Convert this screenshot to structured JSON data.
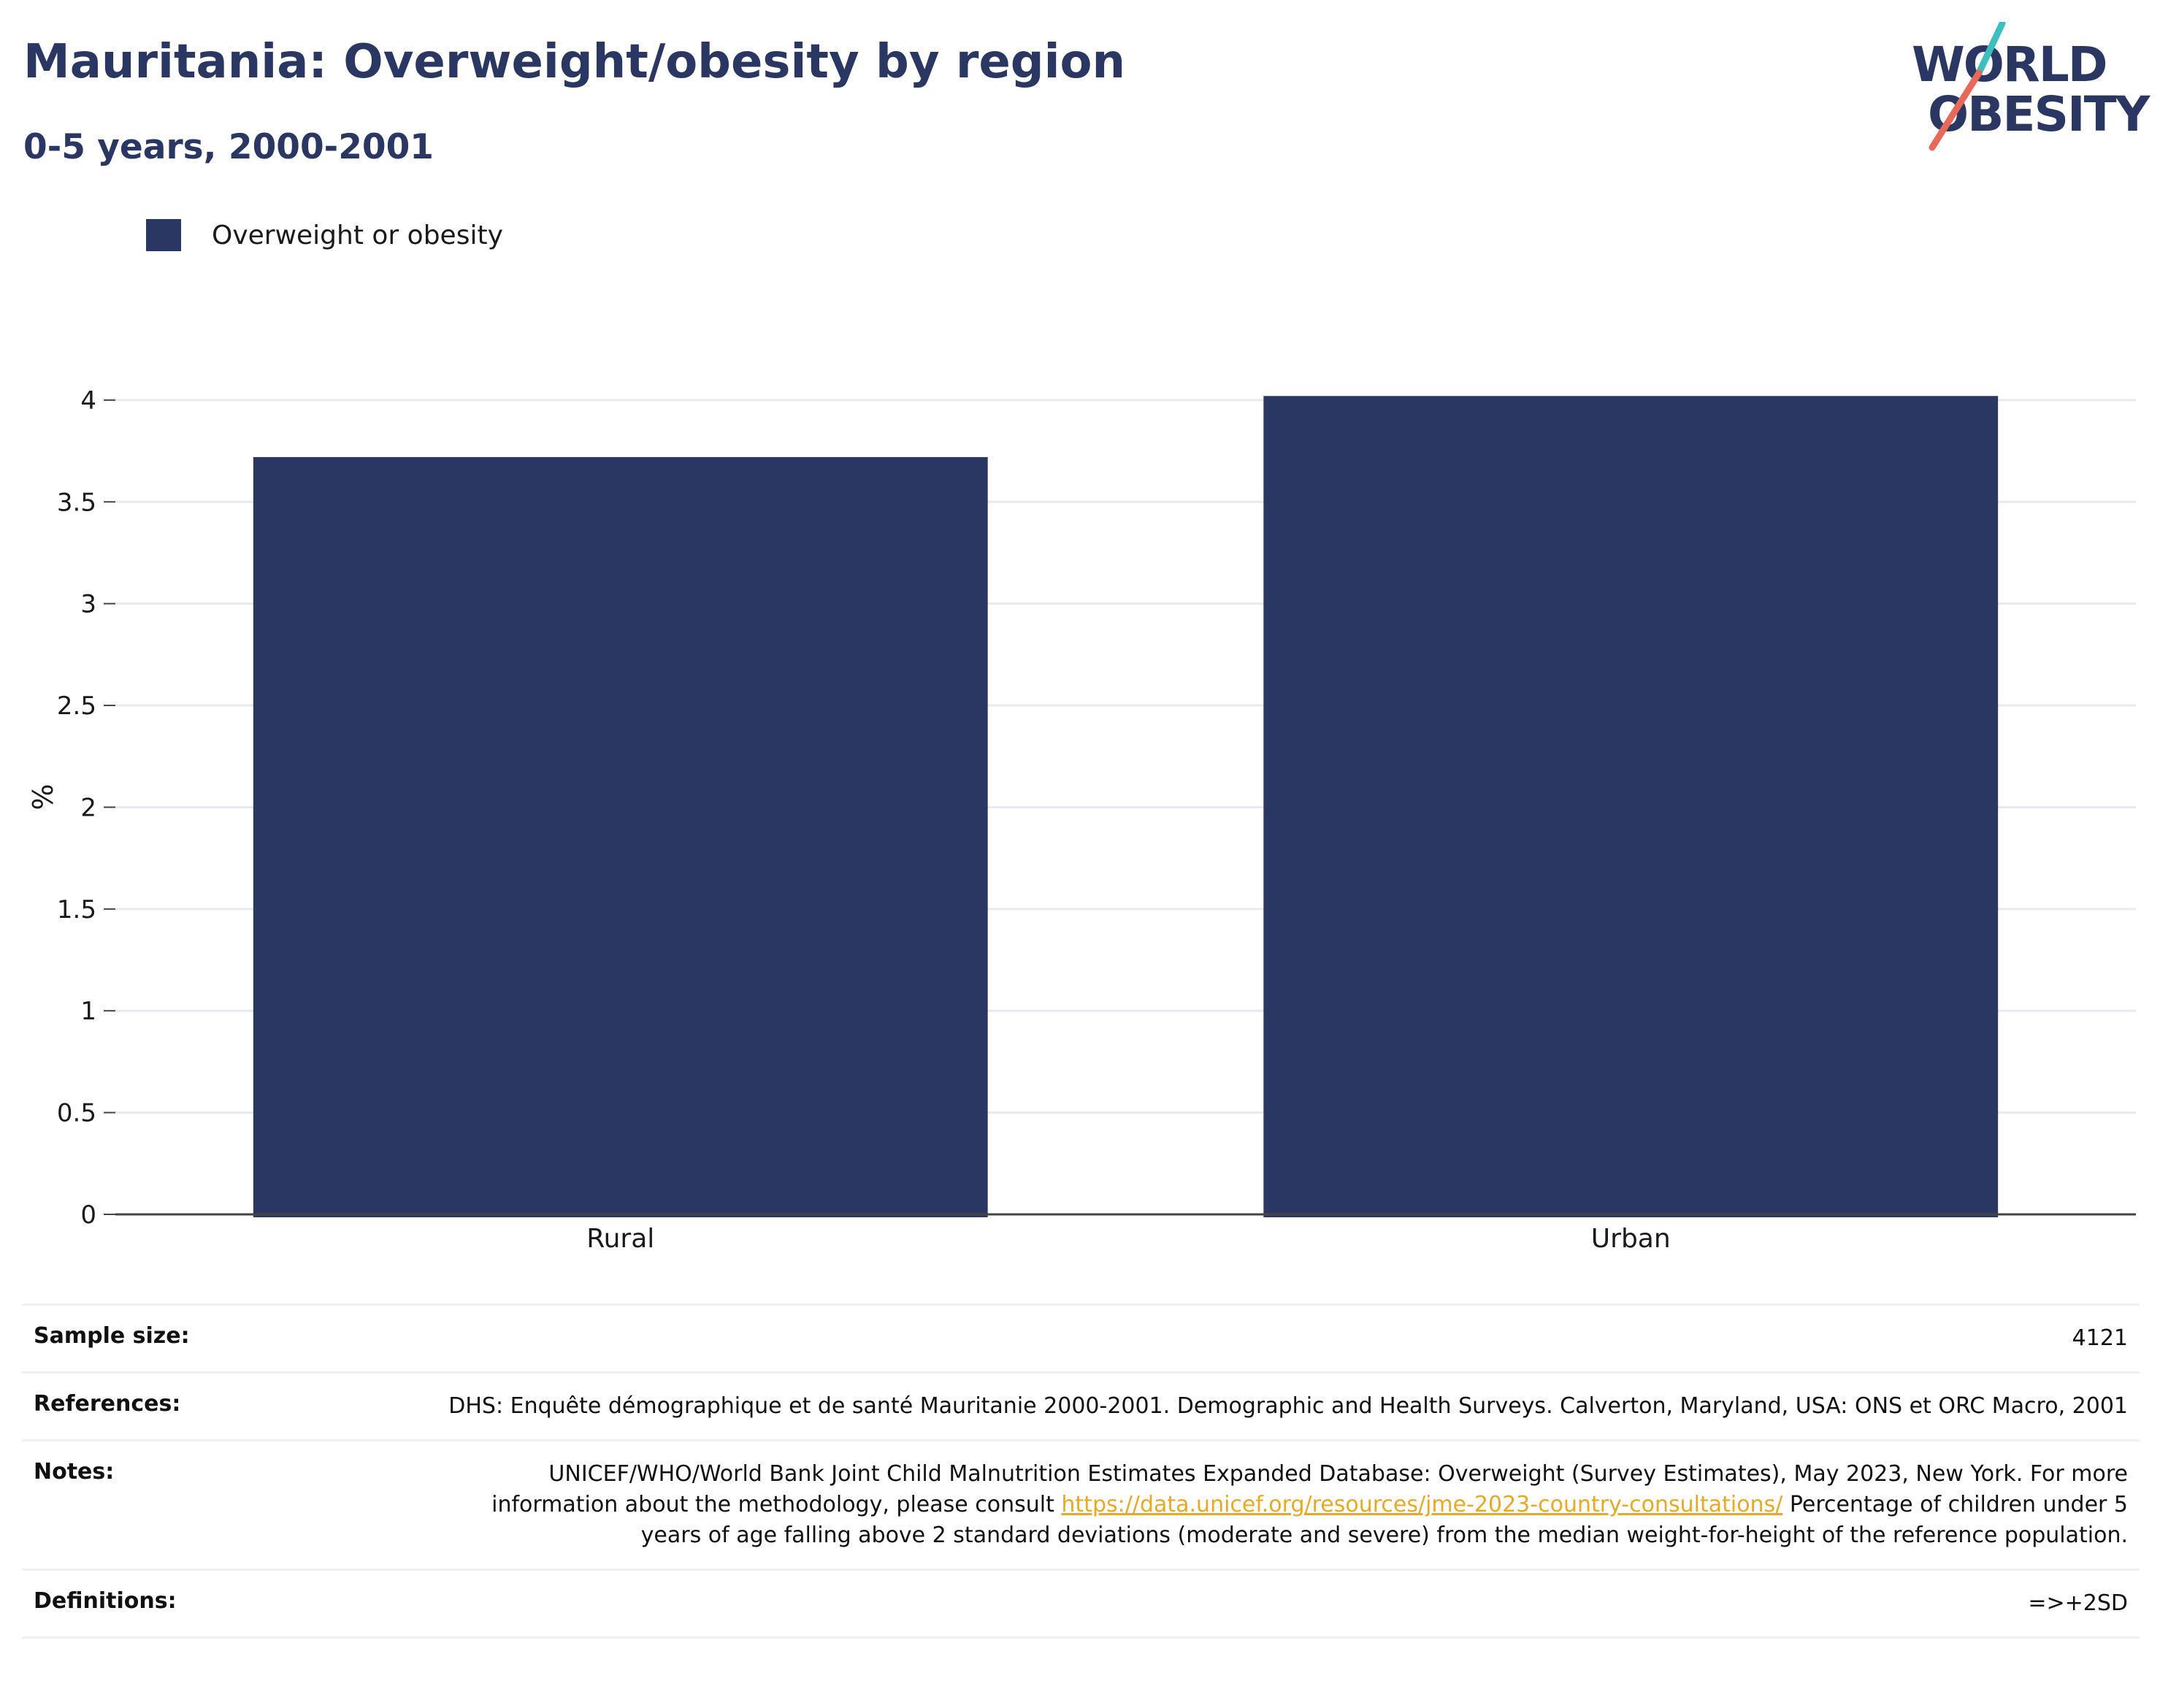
{
  "header": {
    "title": "Mauritania: Overweight/obesity by region",
    "subtitle": "0-5 years, 2000-2001"
  },
  "logo": {
    "line1": "WORLD",
    "line2": "OBESITY",
    "colors": {
      "text": "#2b3763",
      "slash_top": "#3dbfbf",
      "slash_bottom": "#e8685a"
    }
  },
  "legend": {
    "items": [
      {
        "label": "Overweight or obesity",
        "color": "#2b3763"
      }
    ]
  },
  "chart_data": {
    "type": "bar",
    "title": "Mauritania: Overweight/obesity by region",
    "subtitle": "0-5 years, 2000-2001",
    "categories": [
      "Rural",
      "Urban"
    ],
    "series": [
      {
        "name": "Overweight or obesity",
        "values": [
          3.72,
          4.02
        ],
        "color": "#2b3763"
      }
    ],
    "xlabel": "",
    "ylabel": "%",
    "ylim": [
      0,
      4.1
    ],
    "yticks": [
      0,
      0.5,
      1,
      1.5,
      2,
      2.5,
      3,
      3.5,
      4
    ],
    "ytick_labels": [
      "0",
      "0.5",
      "1",
      "1.5",
      "2",
      "2.5",
      "3",
      "3.5",
      "4"
    ],
    "grid": true,
    "legend_position": "top-left"
  },
  "info": {
    "sample_size": {
      "label": "Sample size:",
      "value": "4121"
    },
    "references": {
      "label": "References:",
      "value": "DHS: Enquête démographique et de santé Mauritanie 2000-2001. Demographic and Health Surveys. Calverton, Maryland, USA: ONS et ORC Macro, 2001"
    },
    "notes": {
      "label": "Notes:",
      "text_before": "UNICEF/WHO/World Bank Joint Child Malnutrition Estimates Expanded Database: Overweight (Survey Estimates), May 2023, New York. For more information about the methodology, please consult ",
      "link": "https://data.unicef.org/resources/jme-2023-country-consultations/",
      "text_after": " Percentage of children under 5 years of age falling above 2 standard deviations (moderate and severe) from the median weight-for-height of the reference population."
    },
    "definitions": {
      "label": "Definitions:",
      "value": "=>+2SD"
    }
  }
}
